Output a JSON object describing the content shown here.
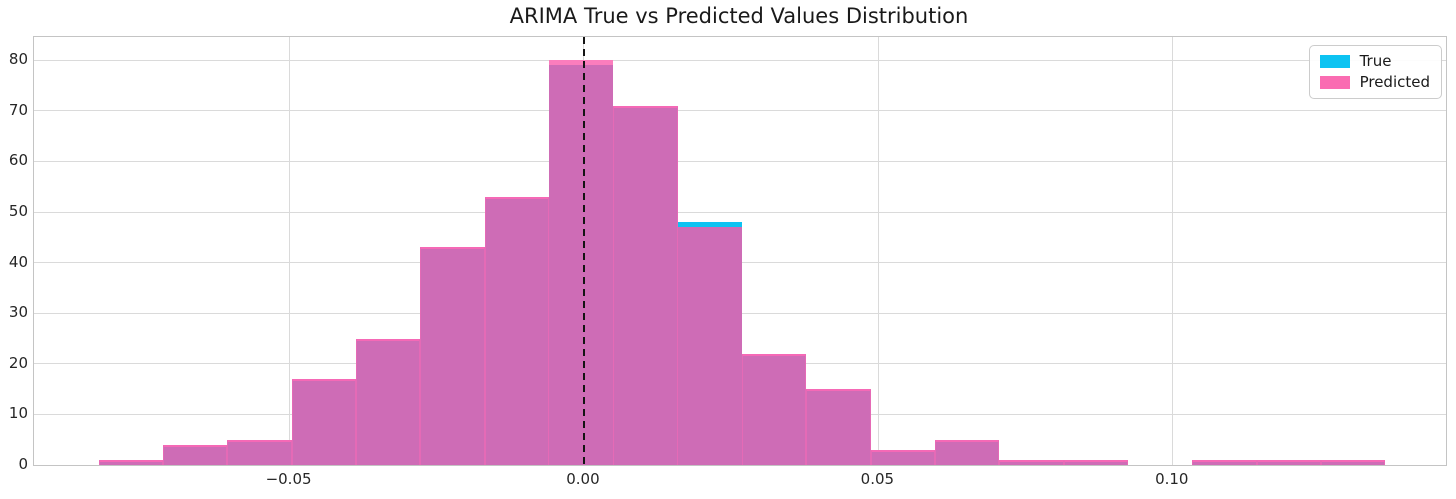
{
  "title": "ARIMA True vs Predicted Values Distribution",
  "legend": {
    "position": "upper right",
    "items": [
      {
        "label": "True",
        "color": "#0dc3f2"
      },
      {
        "label": "Predicted",
        "color": "#fa6cb2"
      }
    ]
  },
  "colors": {
    "true_fill": "#0dc3f2",
    "predicted_fill": "#fb7dbd",
    "overlap_fill": "#ce6cb6",
    "fringe": "#f866b6",
    "grid": "#dadada",
    "spine": "#c4c4c4",
    "vline": "#141414",
    "text": "#262626"
  },
  "chart_data": {
    "type": "bar",
    "subtype": "overlaid-histogram",
    "title": "ARIMA True vs Predicted Values Distribution",
    "xlabel": "",
    "ylabel": "",
    "grid": true,
    "legend_position": "upper right",
    "xlim": [
      -0.0934,
      0.1464
    ],
    "ylim": [
      0,
      84.6
    ],
    "x_ticks": [
      -0.05,
      0.0,
      0.05,
      0.1
    ],
    "x_tick_labels": [
      "−0.05",
      "0.00",
      "0.05",
      "0.10"
    ],
    "y_ticks": [
      0,
      10,
      20,
      30,
      40,
      50,
      60,
      70,
      80
    ],
    "y_tick_labels": [
      "0",
      "10",
      "20",
      "30",
      "40",
      "50",
      "60",
      "70",
      "80"
    ],
    "bin_start": -0.0824,
    "bin_width": 0.010925,
    "bin_count": 20,
    "vline_x": 0.0,
    "series": [
      {
        "name": "True",
        "counts": [
          1,
          4,
          5,
          17,
          25,
          43,
          53,
          79,
          71,
          48,
          22,
          15,
          3,
          5,
          1,
          1,
          0,
          1,
          1,
          1
        ]
      },
      {
        "name": "Predicted",
        "counts": [
          1,
          4,
          5,
          17,
          25,
          43,
          53,
          80,
          71,
          47,
          22,
          15,
          3,
          5,
          1,
          1,
          0,
          1,
          1,
          1
        ]
      }
    ]
  }
}
